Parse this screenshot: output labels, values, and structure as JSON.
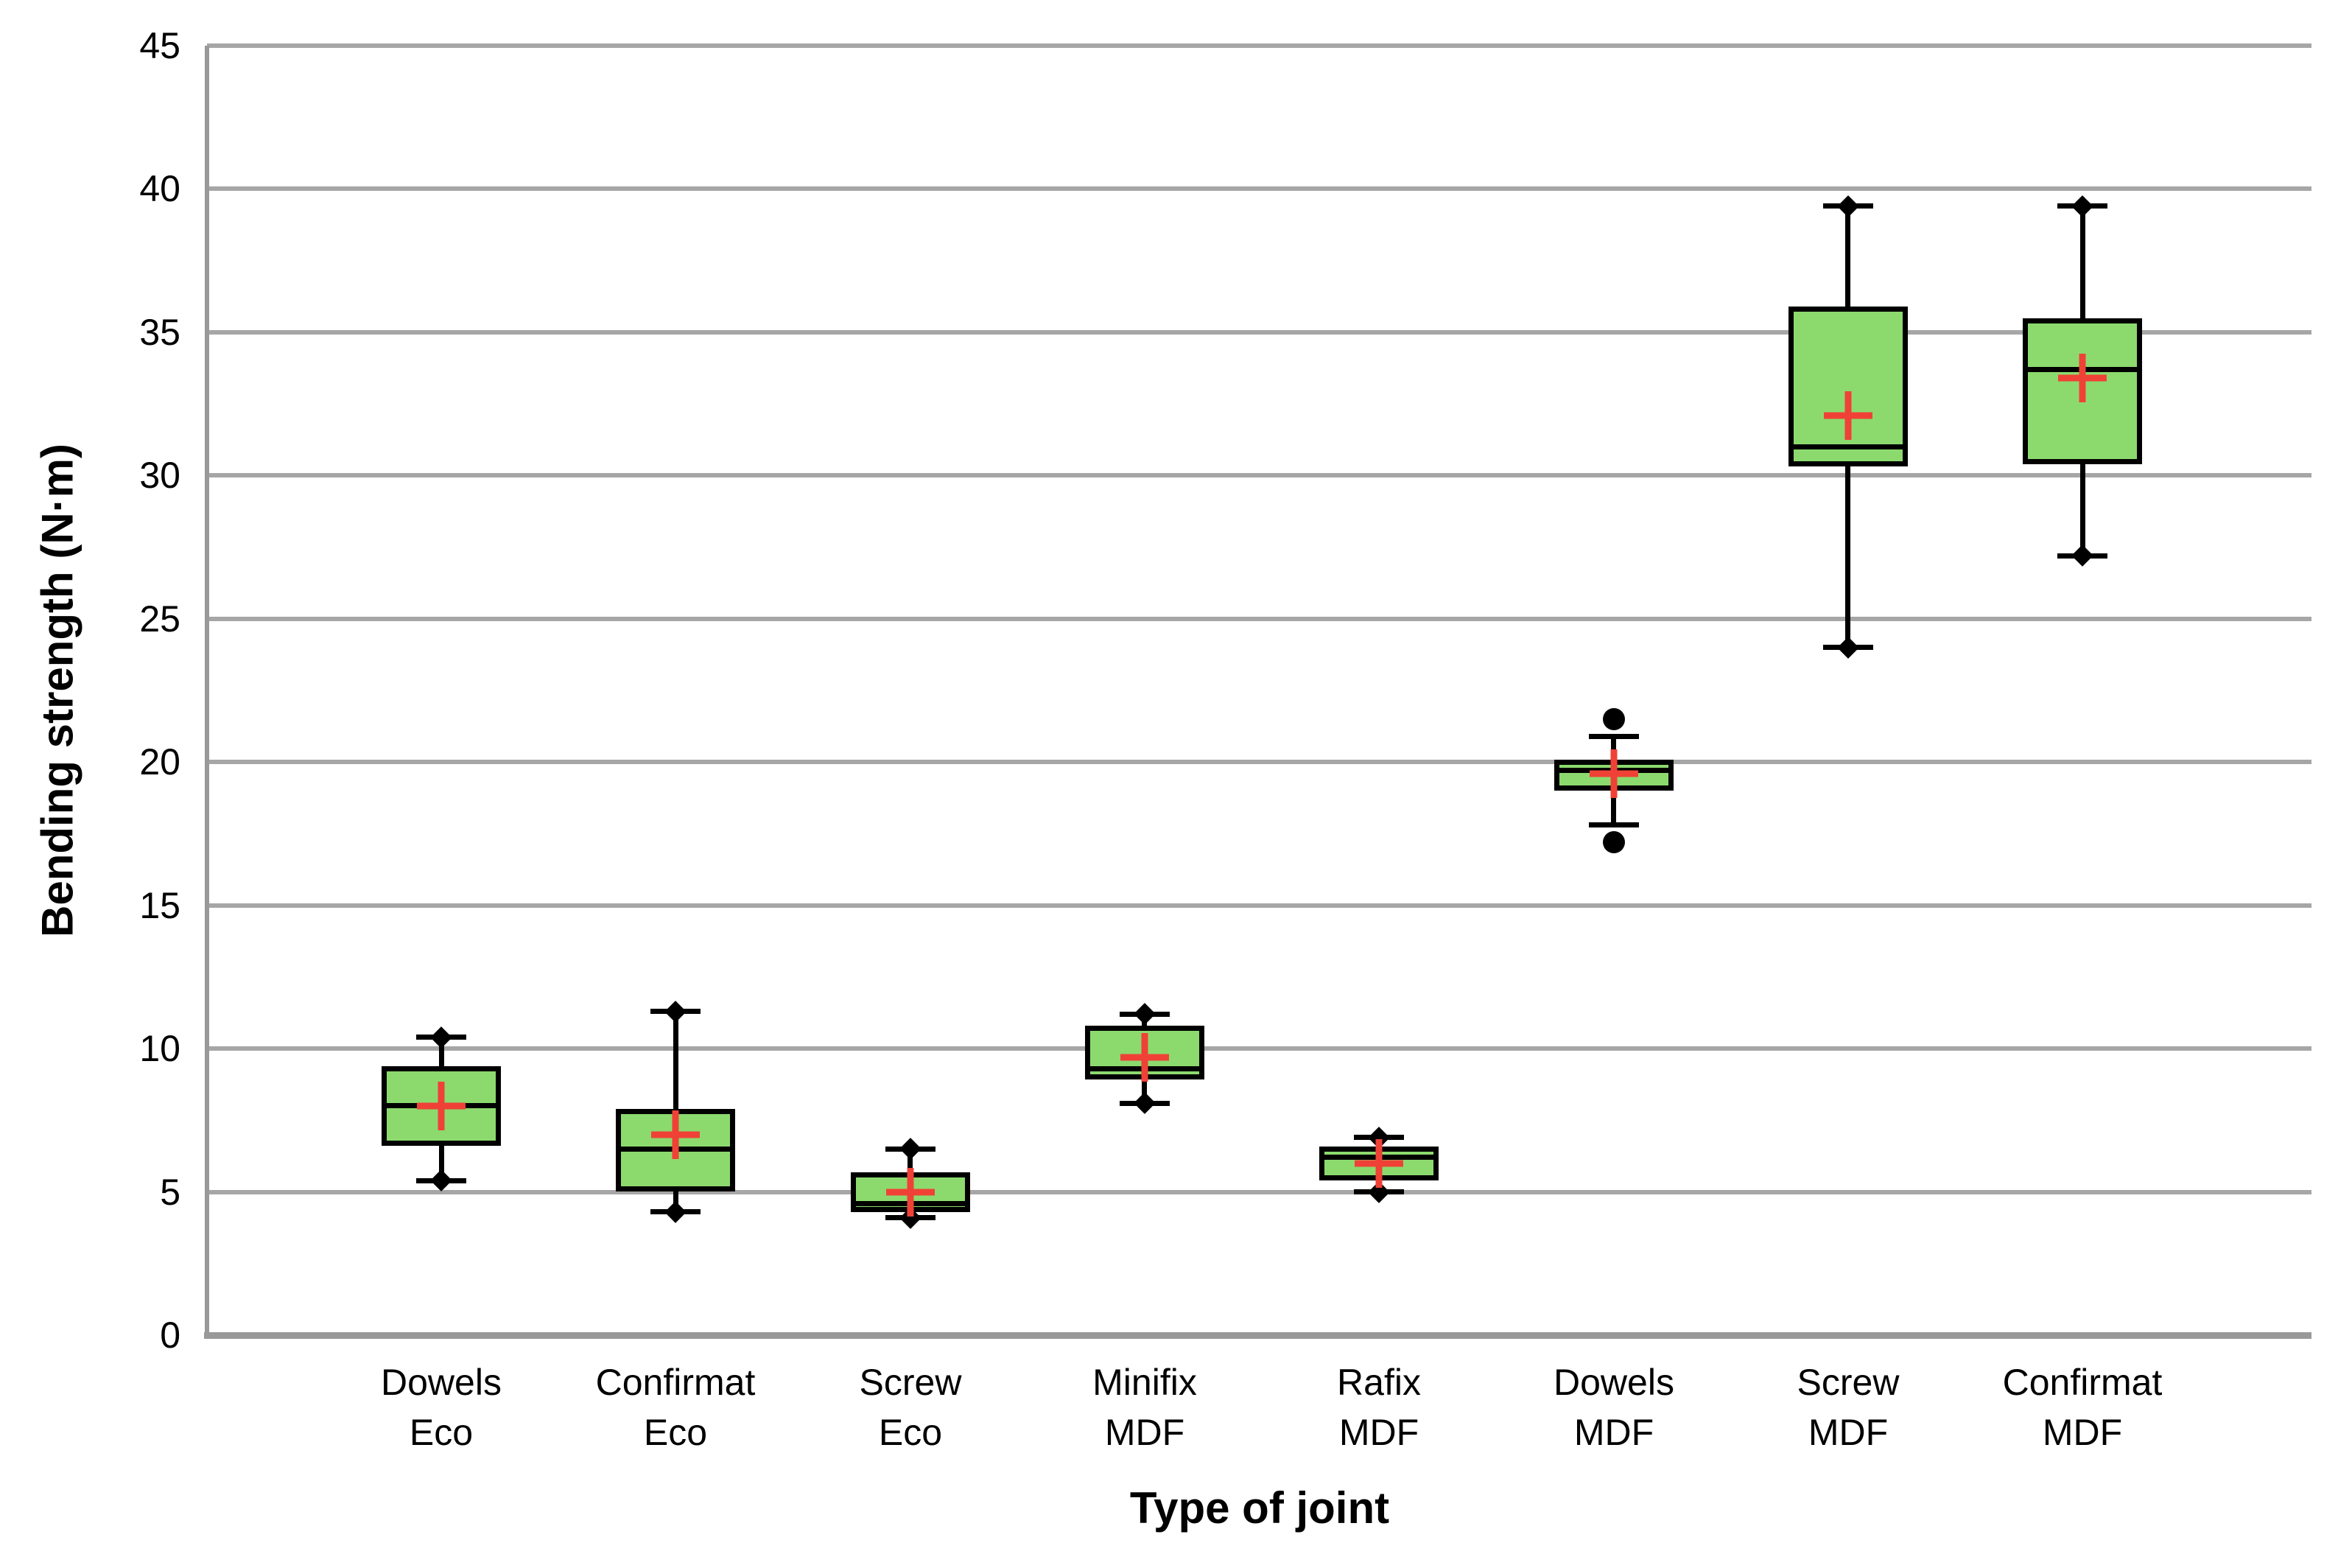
{
  "chart_data": {
    "type": "box",
    "title": "",
    "xlabel": "Type of joint",
    "ylabel": "Bending strength (N·m)",
    "ylim": [
      0,
      45
    ],
    "yticks": [
      0,
      5,
      10,
      15,
      20,
      25,
      30,
      35,
      40,
      45
    ],
    "grid": true,
    "legend": "none",
    "categories": [
      "Dowels Eco",
      "Confirmat Eco",
      "Screw Eco",
      "Minifix MDF",
      "Rafix MDF",
      "Dowels MDF",
      "Screw MDF",
      "Confirmat MDF"
    ],
    "boxes": [
      {
        "label_line1": "Dowels",
        "label_line2": "Eco",
        "min": 5.4,
        "q1": 6.7,
        "median": 8.0,
        "mean": 8.0,
        "q3": 9.3,
        "max": 10.4,
        "outliers": [],
        "whisker_marker": "diamond"
      },
      {
        "label_line1": "Confirmat",
        "label_line2": "Eco",
        "min": 4.3,
        "q1": 5.1,
        "median": 6.5,
        "mean": 7.0,
        "q3": 7.8,
        "max": 11.3,
        "outliers": [],
        "whisker_marker": "diamond"
      },
      {
        "label_line1": "Screw",
        "label_line2": "Eco",
        "min": 4.1,
        "q1": 4.4,
        "median": 4.6,
        "mean": 5.0,
        "q3": 5.6,
        "max": 6.5,
        "outliers": [],
        "whisker_marker": "diamond"
      },
      {
        "label_line1": "Minifix",
        "label_line2": "MDF",
        "min": 8.1,
        "q1": 9.0,
        "median": 9.3,
        "mean": 9.7,
        "q3": 10.7,
        "max": 11.2,
        "outliers": [],
        "whisker_marker": "diamond"
      },
      {
        "label_line1": "Rafix",
        "label_line2": "MDF",
        "min": 5.0,
        "q1": 5.5,
        "median": 6.2,
        "mean": 6.0,
        "q3": 6.5,
        "max": 6.9,
        "outliers": [],
        "whisker_marker": "diamond"
      },
      {
        "label_line1": "Dowels",
        "label_line2": "MDF",
        "min": 17.8,
        "q1": 19.1,
        "median": 19.7,
        "mean": 19.6,
        "q3": 20.0,
        "max": 20.9,
        "outliers": [
          21.5,
          17.2
        ],
        "whisker_marker": "cap-only"
      },
      {
        "label_line1": "Screw",
        "label_line2": "MDF",
        "min": 24.0,
        "q1": 30.4,
        "median": 31.0,
        "mean": 32.1,
        "q3": 35.8,
        "max": 39.4,
        "outliers": [],
        "whisker_marker": "diamond"
      },
      {
        "label_line1": "Confirmat",
        "label_line2": "MDF",
        "min": 27.2,
        "q1": 30.5,
        "median": 33.7,
        "mean": 33.4,
        "q3": 35.4,
        "max": 39.4,
        "outliers": [],
        "whisker_marker": "diamond"
      }
    ],
    "colors": {
      "box_fill": "#8cda6e",
      "box_border": "#000000",
      "whisker": "#000000",
      "mean_marker": "#f04137",
      "outlier": "#000000",
      "gridline": "#a6a6a6",
      "axis_line": "#999999",
      "text": "#000000"
    }
  }
}
